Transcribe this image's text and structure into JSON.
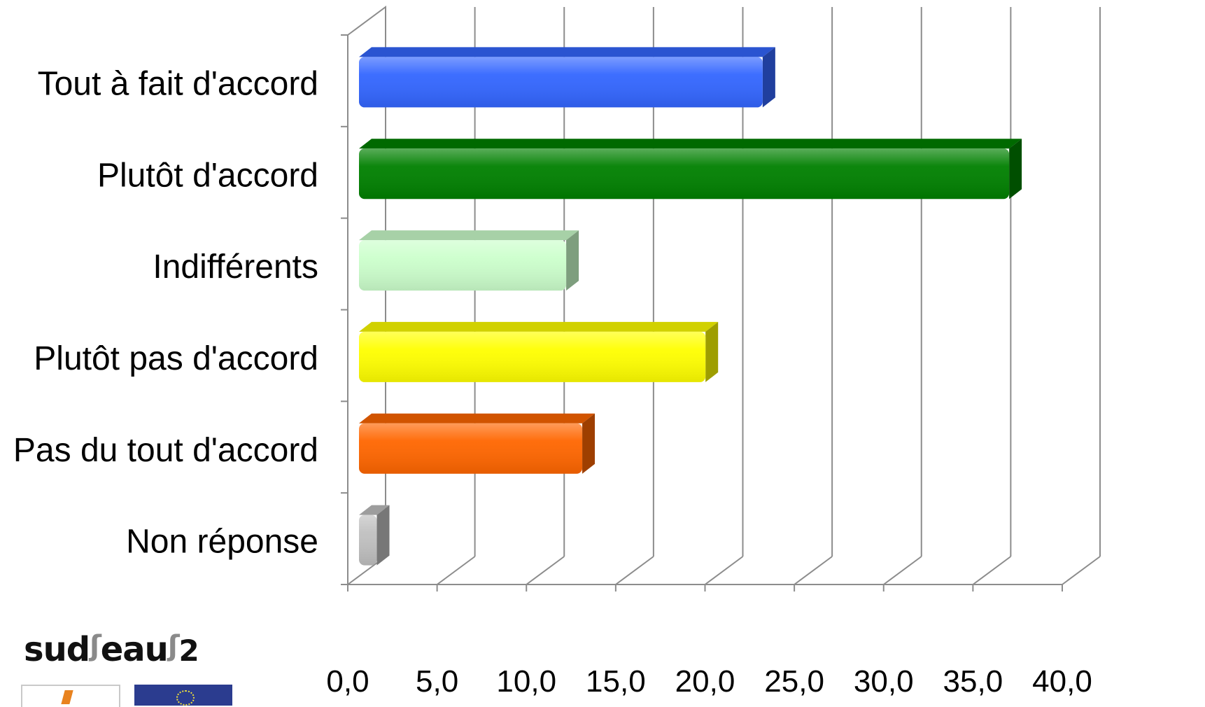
{
  "chart_data": {
    "type": "bar",
    "orientation": "horizontal",
    "style": "3d",
    "title": "",
    "xlabel": "",
    "ylabel": "",
    "categories": [
      "Tout à fait d'accord",
      "Plutôt d'accord",
      "Indifférents",
      "Plutôt pas d'accord",
      "Pas du tout d'accord",
      "Non réponse"
    ],
    "values": [
      22.6,
      36.4,
      11.6,
      19.4,
      12.5,
      1.0
    ],
    "colors": [
      "#3366FF",
      "#008000",
      "#CCFFCC",
      "#FFFF00",
      "#FF6600",
      "#C0C0C0"
    ],
    "xlim": [
      0,
      40
    ],
    "xticks": [
      "0,0",
      "5,0",
      "10,0",
      "15,0",
      "20,0",
      "25,0",
      "30,0",
      "35,0",
      "40,0"
    ],
    "grid": true,
    "legend": "none"
  },
  "logo": {
    "main": "sud",
    "middle": "eau",
    "suffix": "2"
  }
}
